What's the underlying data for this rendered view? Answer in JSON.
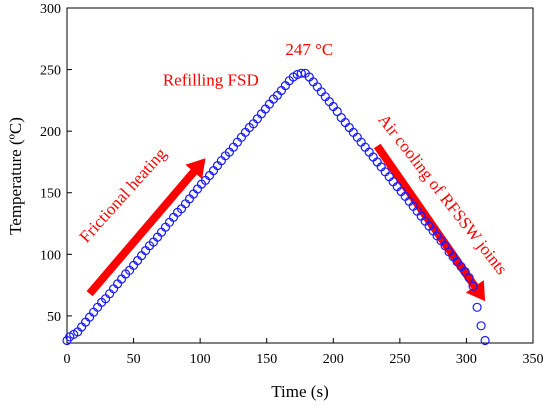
{
  "chart_data": {
    "type": "scatter",
    "xlabel": "Time (s)",
    "ylabel": "Temperature (ºC)",
    "xlim": [
      0,
      350
    ],
    "ylim": [
      28,
      300
    ],
    "x_ticks": [
      0,
      50,
      100,
      150,
      200,
      250,
      300,
      350
    ],
    "y_ticks": [
      50,
      100,
      150,
      200,
      250,
      300
    ],
    "grid": false,
    "marker": "open-circle",
    "colors": {
      "marker": "#1a1aff",
      "annotation": "#ff0000",
      "axis": "#000000"
    },
    "series": [
      {
        "x": [
          0,
          2,
          5,
          8,
          11,
          14,
          17,
          20,
          23,
          26,
          29,
          32,
          35,
          38,
          41,
          44,
          47,
          50,
          53,
          56,
          59,
          62,
          65,
          68,
          71,
          74,
          77,
          80,
          83,
          86,
          89,
          92,
          95,
          98,
          101,
          104,
          107,
          110,
          113,
          116,
          119,
          122,
          125,
          128,
          131,
          134,
          137,
          140,
          143,
          146,
          149,
          152,
          155,
          158,
          161,
          164,
          167,
          170,
          173,
          176,
          179,
          182,
          185,
          188,
          191,
          194,
          197,
          200,
          203,
          206,
          209,
          212,
          215,
          218,
          221,
          224,
          227,
          230,
          233,
          236,
          239,
          242,
          245,
          248,
          251,
          254,
          257,
          260,
          263,
          266,
          269,
          272,
          275,
          278,
          281,
          284,
          287,
          290,
          293,
          296,
          299,
          302,
          305,
          308,
          311,
          314
        ],
        "y": [
          30,
          33,
          35,
          37,
          41,
          45,
          49,
          53,
          57,
          61,
          64,
          68,
          72,
          76,
          80,
          84,
          87,
          91,
          95,
          99,
          103,
          107,
          110,
          114,
          118,
          122,
          126,
          130,
          134,
          137,
          141,
          145,
          149,
          153,
          157,
          160,
          164,
          168,
          172,
          176,
          180,
          183,
          187,
          191,
          195,
          199,
          203,
          206,
          210,
          214,
          218,
          222,
          226,
          229,
          233,
          237,
          241,
          244,
          246,
          247,
          247,
          244,
          240,
          236,
          232,
          228,
          224,
          220,
          216,
          211,
          207,
          203,
          199,
          195,
          191,
          187,
          183,
          179,
          175,
          171,
          167,
          163,
          159,
          155,
          151,
          147,
          143,
          139,
          135,
          131,
          127,
          123,
          119,
          115,
          111,
          107,
          102,
          98,
          94,
          90,
          86,
          81,
          74,
          57,
          42,
          30
        ]
      }
    ],
    "annotations": [
      {
        "text": "247 °C",
        "x": 182,
        "y": 262
      },
      {
        "text": "Refilling  FSD",
        "x": 108,
        "y": 237
      },
      {
        "text": "Frictional heating",
        "x": 45,
        "y": 145,
        "rotate": -48
      },
      {
        "text": "Air cooling of RFSSW joints",
        "x": 279,
        "y": 146,
        "rotate": 52
      }
    ],
    "arrows": [
      {
        "from": [
          17,
          68
        ],
        "to": [
          104,
          178
        ]
      },
      {
        "from": [
          233,
          188
        ],
        "to": [
          314,
          62
        ]
      }
    ]
  }
}
